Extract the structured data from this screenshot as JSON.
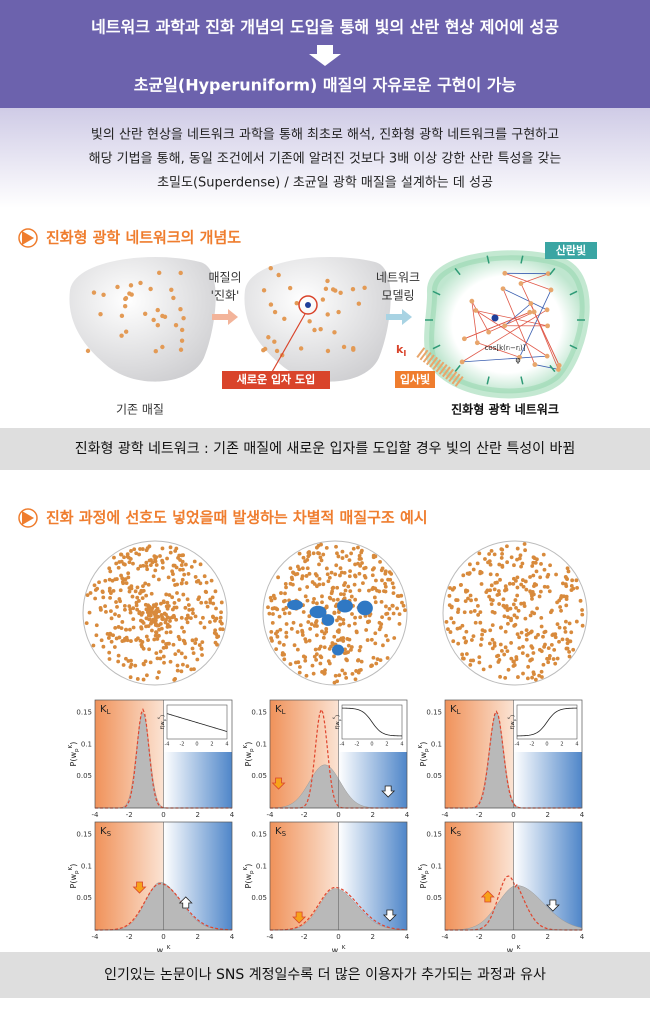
{
  "header": {
    "line1": "네트워크 과학과 진화 개념의 도입을 통해 빛의 산란 현상 제어에 성공",
    "line2": "초균일(Hyperuniform) 매질의 자유로운 구현이 가능"
  },
  "summary": {
    "lines": [
      "빛의 산란 현상을 네트워크 과학을 통해 최초로 해석, 진화형 광학 네트워크를 구현하고",
      "해당 기법을 통해, 동일 조건에서 기존에 알려진 것보다 3배 이상 강한 산란 특성을 갖는",
      "초밀도(Superdense) / 초균일 광학 매질을 설계하는 데 성공"
    ]
  },
  "section1": {
    "title": "진화형 광학 네트워크의 개념도",
    "step1": [
      "매질의",
      "'진화'"
    ],
    "step2": [
      "네트워크",
      "모델링"
    ],
    "new_particle": "새로운 입자 도입",
    "incident": "입사빛",
    "scattered": "산란빛",
    "k_incident": {
      "base": "k",
      "sub": "I"
    },
    "formula": "cos[k(rᵢ−rⱼ)]",
    "phase": "φ",
    "left_caption": "기존 매질",
    "right_caption": "진화형 광학 네트워크",
    "caption": "진화형 광학 네트워크 : 기존 매질에 새로운 입자를 도입할 경우 빛의 산란 특성이 바뀜"
  },
  "section2": {
    "title": "진화 과정에 선호도 넣었을때 발생하는 차별적 매질구조 예시",
    "panels": [
      {
        "base": "K",
        "sub": "L"
      },
      {
        "base": "K",
        "sub": "S"
      }
    ],
    "yticks": [
      "0.15",
      "0.1",
      "0.05"
    ],
    "xticks": [
      "-4",
      "-2",
      "0",
      "2",
      "4"
    ],
    "xlabel": {
      "base": "w",
      "sub": "p",
      "sup": "K"
    },
    "ylabel": {
      "pre": "P(w",
      "sub": "p",
      "sup": "K",
      "post": ")"
    },
    "inset_ylabel": {
      "pre": "f(w",
      "sub": "p",
      "sup": "K",
      "post": ")"
    }
  },
  "footer": "인기있는 논문이나 SNS 계정일수록 더 많은 이용자가 추가되는 과정과 유사"
}
